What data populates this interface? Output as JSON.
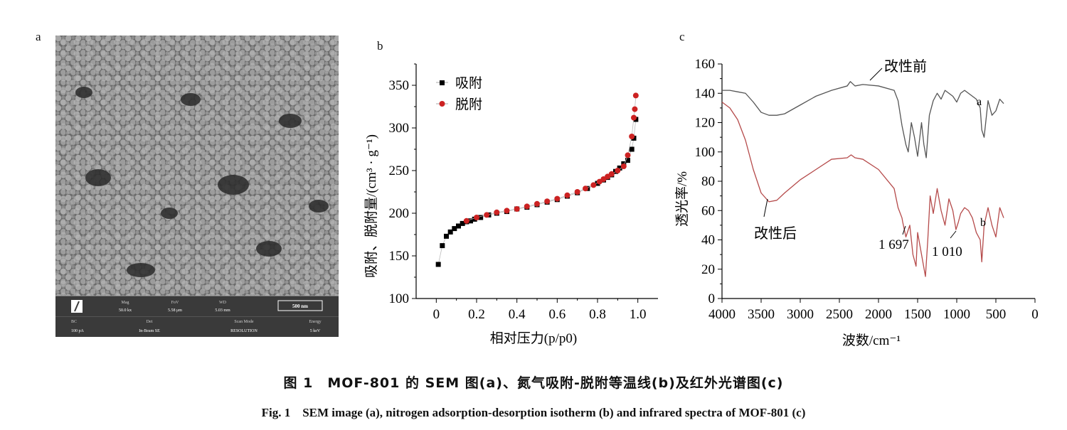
{
  "panels": {
    "a": "a",
    "b": "b",
    "c": "c"
  },
  "sem": {
    "mag_label": "Mag",
    "mag_value": "50.0 kx",
    "fov_label": "FoV",
    "fov_value": "5.58 μm",
    "wd_label": "WD",
    "wd_value": "5.03 mm",
    "bc_label": "BC",
    "bc_value": "100 pA",
    "det_label": "Det",
    "det_value": "In-Beam SE",
    "scan_label": "Scan Mode",
    "scan_value": "RESOLUTION",
    "energy_label": "Energy",
    "energy_value": "5 keV",
    "scale_label": "500 nm"
  },
  "chart_data": [
    {
      "type": "scatter",
      "xlabel": "相对压力(p/p0)",
      "ylabel": "吸附、脱附量/(cm³ · g⁻¹)",
      "xlim": [
        -0.1,
        1.1
      ],
      "ylim": [
        100,
        375
      ],
      "xticks": [
        "0",
        "0.2",
        "0.4",
        "0.6",
        "0.8",
        "1.0"
      ],
      "yticks": [
        "100",
        "150",
        "200",
        "250",
        "300",
        "350"
      ],
      "legend_position": "top-left",
      "series": [
        {
          "name": "吸附",
          "color": "#000000",
          "marker": "square",
          "x": [
            0.01,
            0.03,
            0.05,
            0.07,
            0.09,
            0.11,
            0.13,
            0.15,
            0.17,
            0.19,
            0.22,
            0.26,
            0.3,
            0.35,
            0.4,
            0.45,
            0.5,
            0.55,
            0.6,
            0.65,
            0.7,
            0.75,
            0.8,
            0.83,
            0.85,
            0.87,
            0.89,
            0.91,
            0.93,
            0.95,
            0.97,
            0.98,
            0.99
          ],
          "y": [
            140,
            162,
            173,
            178,
            182,
            185,
            188,
            190,
            191,
            193,
            195,
            198,
            200,
            202,
            205,
            207,
            210,
            213,
            216,
            220,
            224,
            229,
            235,
            239,
            242,
            245,
            249,
            253,
            258,
            262,
            275,
            288,
            310
          ]
        },
        {
          "name": "脱附",
          "color": "#cc2222",
          "marker": "circle",
          "x": [
            0.99,
            0.985,
            0.98,
            0.97,
            0.95,
            0.93,
            0.9,
            0.87,
            0.85,
            0.83,
            0.81,
            0.78,
            0.74,
            0.7,
            0.65,
            0.6,
            0.55,
            0.5,
            0.45,
            0.4,
            0.35,
            0.3,
            0.25,
            0.2,
            0.15
          ],
          "y": [
            338,
            322,
            312,
            290,
            268,
            255,
            250,
            246,
            243,
            240,
            237,
            233,
            229,
            225,
            221,
            217,
            214,
            211,
            208,
            205,
            203,
            201,
            198,
            195,
            191
          ]
        }
      ]
    },
    {
      "type": "line",
      "xlabel": "波数/cm⁻¹",
      "ylabel": "透光率/%",
      "xlim": [
        4000,
        0
      ],
      "ylim": [
        0,
        160
      ],
      "xticks": [
        "4000",
        "3500",
        "3000",
        "2500",
        "2000",
        "1500",
        "1000",
        "500",
        "0"
      ],
      "yticks": [
        "0",
        "20",
        "40",
        "60",
        "80",
        "100",
        "120",
        "140",
        "160"
      ],
      "series": [
        {
          "name": "a",
          "color": "#555555",
          "x": [
            4000,
            3900,
            3800,
            3700,
            3600,
            3500,
            3400,
            3300,
            3200,
            3000,
            2800,
            2600,
            2400,
            2360,
            2340,
            2300,
            2200,
            2000,
            1800,
            1750,
            1700,
            1650,
            1620,
            1580,
            1540,
            1500,
            1450,
            1420,
            1390,
            1350,
            1300,
            1250,
            1200,
            1150,
            1100,
            1050,
            1000,
            950,
            900,
            850,
            800,
            750,
            700,
            680,
            650,
            620,
            600,
            550,
            500,
            450,
            400
          ],
          "y": [
            142,
            142,
            141,
            140,
            134,
            127,
            125,
            125,
            126,
            132,
            138,
            142,
            145,
            148,
            147,
            145,
            146,
            145,
            142,
            135,
            118,
            105,
            100,
            120,
            110,
            97,
            120,
            105,
            96,
            125,
            135,
            140,
            136,
            142,
            140,
            138,
            134,
            140,
            142,
            140,
            138,
            136,
            130,
            115,
            110,
            125,
            135,
            125,
            128,
            136,
            133
          ]
        },
        {
          "name": "b",
          "color": "#b54a4a",
          "x": [
            4000,
            3900,
            3800,
            3700,
            3600,
            3500,
            3400,
            3300,
            3200,
            3000,
            2800,
            2600,
            2400,
            2350,
            2300,
            2200,
            2000,
            1800,
            1750,
            1700,
            1690,
            1650,
            1600,
            1560,
            1520,
            1500,
            1450,
            1400,
            1370,
            1340,
            1300,
            1250,
            1200,
            1150,
            1100,
            1050,
            1010,
            980,
            950,
            900,
            850,
            800,
            750,
            700,
            680,
            650,
            600,
            550,
            500,
            450,
            400
          ],
          "y": [
            134,
            130,
            122,
            108,
            88,
            72,
            66,
            67,
            72,
            81,
            88,
            95,
            96,
            98,
            96,
            95,
            88,
            75,
            62,
            55,
            52,
            42,
            50,
            30,
            22,
            45,
            30,
            15,
            40,
            70,
            58,
            75,
            60,
            50,
            68,
            60,
            47,
            52,
            58,
            62,
            60,
            55,
            45,
            40,
            25,
            50,
            62,
            50,
            42,
            62,
            55
          ]
        }
      ],
      "annotations": [
        {
          "text": "改性前"
        },
        {
          "text": "改性后"
        },
        {
          "text": "1 697"
        },
        {
          "text": "1 010"
        }
      ]
    }
  ],
  "caption_zh": "图 1　MOF-801 的 SEM 图(a)、氮气吸附-脱附等温线(b)及红外光谱图(c)",
  "caption_en": "Fig. 1　SEM image (a), nitrogen adsorption-desorption isotherm (b) and infrared spectra of MOF-801 (c)"
}
